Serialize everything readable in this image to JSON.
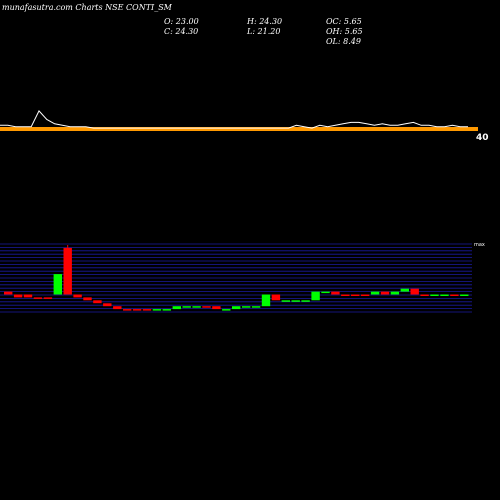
{
  "watermark": "munafasutra.com Charts NSE CONTI_SM",
  "ohlc": {
    "open": "O: 23.00",
    "high": "H: 24.30",
    "oc": "OC: 5.65",
    "close": "C: 24.30",
    "low": "L: 21.20",
    "oh": "OH: 5.65",
    "ol": "OL: 8.49"
  },
  "colors": {
    "background": "#000000",
    "price_line": "#ffffff",
    "price_band": "#ff9900",
    "up": "#00ff00",
    "down": "#ff0000",
    "grid": "#1a1aa0"
  },
  "chart_data": [
    {
      "type": "line",
      "title": "",
      "price_axis_label": "40",
      "price_trend": [
        30,
        30,
        29,
        29,
        29,
        40,
        34,
        31,
        30,
        29,
        29,
        29,
        28,
        28,
        28,
        28,
        28,
        28,
        28,
        28,
        28,
        28,
        28,
        28,
        28,
        28,
        28,
        28,
        28,
        28,
        28,
        28,
        28,
        28,
        28,
        28,
        28,
        28,
        30,
        29,
        28,
        30,
        29,
        30,
        31,
        32,
        32,
        31,
        30,
        31,
        30,
        30,
        31,
        32,
        30,
        30,
        29,
        29,
        30,
        29,
        29
      ]
    },
    {
      "type": "bar",
      "title": "",
      "series": [
        {
          "name": "",
          "values": []
        }
      ],
      "candles": [
        {
          "open": 29,
          "close": 28,
          "dir": "down"
        },
        {
          "open": 28,
          "close": 27,
          "dir": "down"
        },
        {
          "open": 28,
          "close": 27,
          "dir": "down"
        },
        {
          "open": 27,
          "close": 27,
          "dir": "down"
        },
        {
          "open": 27,
          "close": 27,
          "dir": "down"
        },
        {
          "open": 28,
          "close": 35,
          "dir": "up"
        },
        {
          "open": 44,
          "close": 28,
          "dir": "down"
        },
        {
          "open": 28,
          "close": 27,
          "dir": "down"
        },
        {
          "open": 27,
          "close": 26,
          "dir": "down"
        },
        {
          "open": 26,
          "close": 25,
          "dir": "down"
        },
        {
          "open": 25,
          "close": 24,
          "dir": "down"
        },
        {
          "open": 24,
          "close": 23,
          "dir": "down"
        },
        {
          "open": 23,
          "close": 23,
          "dir": "down"
        },
        {
          "open": 23,
          "close": 23,
          "dir": "down"
        },
        {
          "open": 23,
          "close": 23,
          "dir": "down"
        },
        {
          "open": 23,
          "close": 23,
          "dir": "up"
        },
        {
          "open": 23,
          "close": 23,
          "dir": "up"
        },
        {
          "open": 23,
          "close": 24,
          "dir": "up"
        },
        {
          "open": 24,
          "close": 24,
          "dir": "up"
        },
        {
          "open": 24,
          "close": 24,
          "dir": "up"
        },
        {
          "open": 24,
          "close": 24,
          "dir": "down"
        },
        {
          "open": 24,
          "close": 23,
          "dir": "down"
        },
        {
          "open": 23,
          "close": 23,
          "dir": "up"
        },
        {
          "open": 23,
          "close": 24,
          "dir": "up"
        },
        {
          "open": 24,
          "close": 24,
          "dir": "up"
        },
        {
          "open": 24,
          "close": 24,
          "dir": "up"
        },
        {
          "open": 24,
          "close": 28,
          "dir": "up"
        },
        {
          "open": 28,
          "close": 26,
          "dir": "down"
        },
        {
          "open": 26,
          "close": 26,
          "dir": "up"
        },
        {
          "open": 26,
          "close": 26,
          "dir": "up"
        },
        {
          "open": 26,
          "close": 26,
          "dir": "up"
        },
        {
          "open": 26,
          "close": 29,
          "dir": "up"
        },
        {
          "open": 29,
          "close": 29,
          "dir": "up"
        },
        {
          "open": 29,
          "close": 28,
          "dir": "down"
        },
        {
          "open": 28,
          "close": 28,
          "dir": "down"
        },
        {
          "open": 28,
          "close": 28,
          "dir": "down"
        },
        {
          "open": 28,
          "close": 28,
          "dir": "down"
        },
        {
          "open": 28,
          "close": 29,
          "dir": "up"
        },
        {
          "open": 29,
          "close": 28,
          "dir": "down"
        },
        {
          "open": 28,
          "close": 29,
          "dir": "up"
        },
        {
          "open": 29,
          "close": 30,
          "dir": "up"
        },
        {
          "open": 30,
          "close": 28,
          "dir": "down"
        },
        {
          "open": 28,
          "close": 28,
          "dir": "down"
        },
        {
          "open": 28,
          "close": 28,
          "dir": "up"
        },
        {
          "open": 28,
          "close": 28,
          "dir": "up"
        },
        {
          "open": 28,
          "close": 28,
          "dir": "down"
        },
        {
          "open": 28,
          "close": 28,
          "dir": "up"
        }
      ],
      "volume_axis_labels": [
        "max",
        "",
        "",
        "",
        "",
        "",
        "",
        "",
        "",
        "",
        "",
        "",
        "",
        "",
        "",
        "",
        "",
        "",
        "",
        "",
        ""
      ]
    }
  ]
}
